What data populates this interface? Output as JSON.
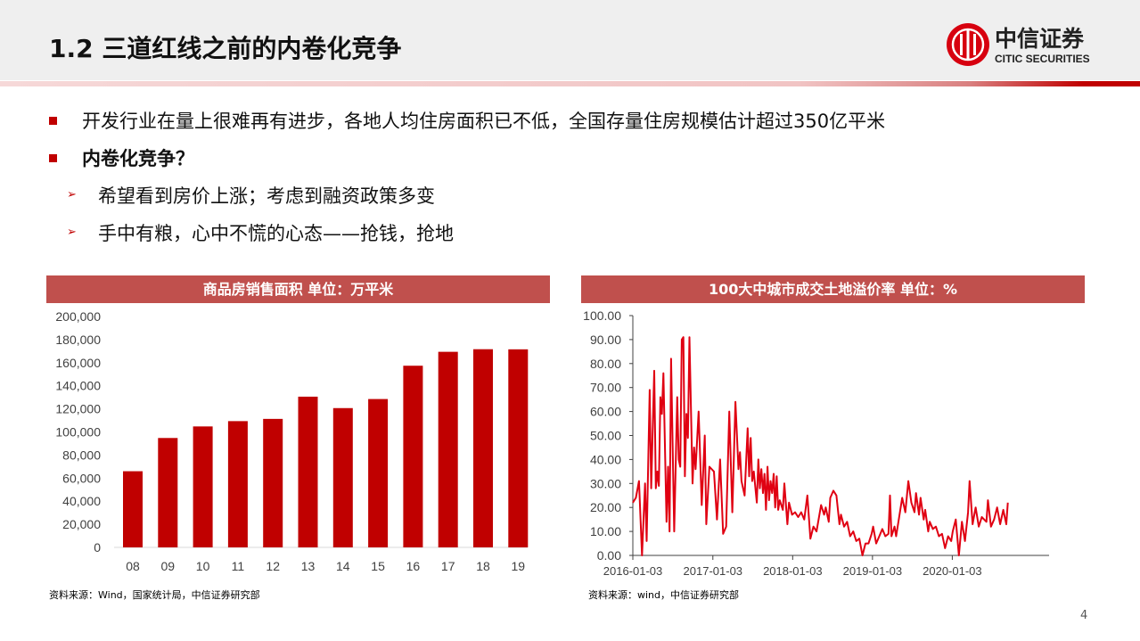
{
  "header": {
    "title": "1.2 三道红线之前的内卷化竞争",
    "logo_cn": "中信证券",
    "logo_en": "CITIC SECURITIES"
  },
  "bullets": [
    {
      "level": 1,
      "text": "开发行业在量上很难再有进步，各地人均住房面积已不低，全国存量住房规模估计超过350亿平米",
      "bold": false
    },
    {
      "level": 1,
      "text": "内卷化竞争？",
      "bold": true
    },
    {
      "level": 2,
      "text": "希望看到房价上涨；考虑到融资政策多变"
    },
    {
      "level": 2,
      "text": "手中有粮，心中不慌的心态——抢钱，抢地"
    }
  ],
  "colors": {
    "accent": "#c00000",
    "chart_header": "#c0504d",
    "series": "#e00012"
  },
  "chart_data": [
    {
      "type": "bar",
      "title": "商品房销售面积 单位：万平米",
      "categories": [
        "08",
        "09",
        "10",
        "11",
        "12",
        "13",
        "14",
        "15",
        "16",
        "17",
        "18",
        "19"
      ],
      "values": [
        65970,
        94755,
        104765,
        109367,
        111304,
        130551,
        120649,
        128495,
        157349,
        169408,
        171654,
        171558
      ],
      "ylim": [
        0,
        200000
      ],
      "yticks": [
        "0",
        "20,000",
        "40,000",
        "60,000",
        "80,000",
        "100,000",
        "120,000",
        "140,000",
        "160,000",
        "180,000",
        "200,000"
      ],
      "grid": false,
      "source": "资料来源：Wind，国家统计局，中信证券研究部"
    },
    {
      "type": "line",
      "title": "100大中城市成交土地溢价率 单位：%",
      "ylim": [
        0,
        100
      ],
      "yticks": [
        "0.00",
        "10.00",
        "20.00",
        "30.00",
        "40.00",
        "50.00",
        "60.00",
        "70.00",
        "80.00",
        "90.00",
        "100.00"
      ],
      "xticks": [
        "2016-01-03",
        "2017-01-03",
        "2018-01-03",
        "2019-01-03",
        "2020-01-03"
      ],
      "grid": false,
      "source": "资料来源：wind，中信证券研究部",
      "points": [
        [
          "2016-01-03",
          22
        ],
        [
          "2016-01-17",
          24
        ],
        [
          "2016-01-31",
          31
        ],
        [
          "2016-02-14",
          0
        ],
        [
          "2016-02-28",
          30
        ],
        [
          "2016-03-06",
          6
        ],
        [
          "2016-03-20",
          69
        ],
        [
          "2016-03-27",
          28
        ],
        [
          "2016-04-10",
          77
        ],
        [
          "2016-04-17",
          28
        ],
        [
          "2016-04-24",
          35
        ],
        [
          "2016-05-01",
          29
        ],
        [
          "2016-05-08",
          66
        ],
        [
          "2016-05-15",
          59
        ],
        [
          "2016-05-22",
          76
        ],
        [
          "2016-06-05",
          14
        ],
        [
          "2016-06-12",
          37
        ],
        [
          "2016-06-19",
          10
        ],
        [
          "2016-06-26",
          82
        ],
        [
          "2016-07-10",
          10
        ],
        [
          "2016-07-24",
          66
        ],
        [
          "2016-07-31",
          40
        ],
        [
          "2016-08-07",
          37
        ],
        [
          "2016-08-14",
          90
        ],
        [
          "2016-08-21",
          91
        ],
        [
          "2016-08-28",
          33
        ],
        [
          "2016-09-04",
          59
        ],
        [
          "2016-09-11",
          49
        ],
        [
          "2016-09-18",
          91
        ],
        [
          "2016-10-02",
          30
        ],
        [
          "2016-10-09",
          45
        ],
        [
          "2016-10-16",
          36
        ],
        [
          "2016-10-30",
          60
        ],
        [
          "2016-11-13",
          21
        ],
        [
          "2016-11-27",
          50
        ],
        [
          "2016-12-04",
          13
        ],
        [
          "2016-12-18",
          37
        ],
        [
          "2017-01-08",
          35
        ],
        [
          "2017-01-22",
          15
        ],
        [
          "2017-02-05",
          40
        ],
        [
          "2017-02-19",
          9
        ],
        [
          "2017-03-05",
          12
        ],
        [
          "2017-03-19",
          60
        ],
        [
          "2017-04-02",
          18
        ],
        [
          "2017-04-16",
          64
        ],
        [
          "2017-04-30",
          36
        ],
        [
          "2017-05-07",
          43
        ],
        [
          "2017-05-14",
          31
        ],
        [
          "2017-05-28",
          25
        ],
        [
          "2017-06-11",
          53
        ],
        [
          "2017-06-18",
          33
        ],
        [
          "2017-06-25",
          49
        ],
        [
          "2017-07-02",
          31
        ],
        [
          "2017-07-09",
          35
        ],
        [
          "2017-07-23",
          22
        ],
        [
          "2017-07-30",
          40
        ],
        [
          "2017-08-06",
          28
        ],
        [
          "2017-08-13",
          36
        ],
        [
          "2017-08-20",
          26
        ],
        [
          "2017-08-27",
          34
        ],
        [
          "2017-09-03",
          19
        ],
        [
          "2017-09-10",
          37
        ],
        [
          "2017-09-17",
          23
        ],
        [
          "2017-09-24",
          31
        ],
        [
          "2017-10-01",
          26
        ],
        [
          "2017-10-08",
          34
        ],
        [
          "2017-10-15",
          20
        ],
        [
          "2017-10-22",
          33
        ],
        [
          "2017-10-29",
          19
        ],
        [
          "2017-11-05",
          23
        ],
        [
          "2017-11-19",
          19
        ],
        [
          "2017-11-26",
          30
        ],
        [
          "2017-12-10",
          13
        ],
        [
          "2017-12-17",
          22
        ],
        [
          "2017-12-31",
          17
        ],
        [
          "2018-01-14",
          18
        ],
        [
          "2018-01-28",
          16
        ],
        [
          "2018-02-11",
          18
        ],
        [
          "2018-02-25",
          15
        ],
        [
          "2018-03-11",
          25
        ],
        [
          "2018-03-25",
          7
        ],
        [
          "2018-04-08",
          12
        ],
        [
          "2018-04-22",
          10
        ],
        [
          "2018-05-13",
          21
        ],
        [
          "2018-05-27",
          17
        ],
        [
          "2018-06-03",
          20
        ],
        [
          "2018-06-17",
          14
        ],
        [
          "2018-06-24",
          24
        ],
        [
          "2018-07-08",
          27
        ],
        [
          "2018-07-22",
          25
        ],
        [
          "2018-08-05",
          13
        ],
        [
          "2018-08-12",
          17
        ],
        [
          "2018-08-26",
          12
        ],
        [
          "2018-09-09",
          14
        ],
        [
          "2018-09-23",
          8
        ],
        [
          "2018-10-07",
          10
        ],
        [
          "2018-10-21",
          6
        ],
        [
          "2018-11-04",
          7
        ],
        [
          "2018-11-18",
          0
        ],
        [
          "2018-12-02",
          5
        ],
        [
          "2018-12-16",
          5
        ],
        [
          "2018-12-30",
          9
        ],
        [
          "2019-01-06",
          12
        ],
        [
          "2019-01-20",
          5
        ],
        [
          "2019-02-03",
          8
        ],
        [
          "2019-02-17",
          11
        ],
        [
          "2019-03-03",
          8
        ],
        [
          "2019-03-17",
          9
        ],
        [
          "2019-03-24",
          25
        ],
        [
          "2019-03-31",
          8
        ],
        [
          "2019-04-14",
          12
        ],
        [
          "2019-04-21",
          8
        ],
        [
          "2019-05-05",
          16
        ],
        [
          "2019-05-19",
          24
        ],
        [
          "2019-06-02",
          18
        ],
        [
          "2019-06-16",
          31
        ],
        [
          "2019-06-30",
          22
        ],
        [
          "2019-07-14",
          18
        ],
        [
          "2019-07-21",
          26
        ],
        [
          "2019-08-04",
          17
        ],
        [
          "2019-08-11",
          24
        ],
        [
          "2019-08-25",
          15
        ],
        [
          "2019-09-01",
          19
        ],
        [
          "2019-09-15",
          10
        ],
        [
          "2019-09-22",
          14
        ],
        [
          "2019-10-06",
          11
        ],
        [
          "2019-10-20",
          12
        ],
        [
          "2019-11-03",
          8
        ],
        [
          "2019-11-17",
          9
        ],
        [
          "2019-12-01",
          3
        ],
        [
          "2019-12-15",
          8
        ],
        [
          "2019-12-29",
          6
        ],
        [
          "2020-01-05",
          10
        ],
        [
          "2020-01-19",
          15
        ],
        [
          "2020-02-02",
          0
        ],
        [
          "2020-02-16",
          14
        ],
        [
          "2020-03-01",
          6
        ],
        [
          "2020-03-15",
          18
        ],
        [
          "2020-03-22",
          31
        ],
        [
          "2020-04-05",
          13
        ],
        [
          "2020-04-19",
          20
        ],
        [
          "2020-05-03",
          12
        ],
        [
          "2020-05-17",
          16
        ],
        [
          "2020-06-07",
          14
        ],
        [
          "2020-06-14",
          23
        ],
        [
          "2020-06-28",
          12
        ],
        [
          "2020-07-12",
          15
        ],
        [
          "2020-07-26",
          20
        ],
        [
          "2020-08-09",
          13
        ],
        [
          "2020-08-23",
          19
        ],
        [
          "2020-09-06",
          13
        ],
        [
          "2020-09-13",
          22
        ]
      ]
    }
  ],
  "page_number": "4"
}
